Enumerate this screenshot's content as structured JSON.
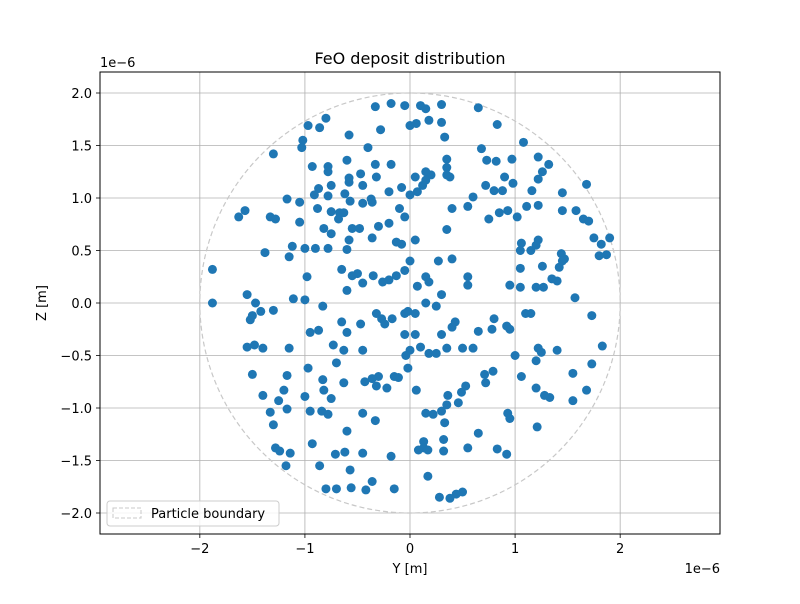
{
  "chart_data": {
    "type": "scatter",
    "title": "FeO deposit distribution",
    "xlabel": "Y [m]",
    "ylabel": "Z [m]",
    "x_offset_label": "1e−6",
    "y_offset_label": "1e−6",
    "xlim": [
      -2.95,
      2.95
    ],
    "ylim": [
      -2.2,
      2.2
    ],
    "xticks": [
      -2,
      -1,
      0,
      1,
      2
    ],
    "xtick_labels": [
      "−2",
      "−1",
      "0",
      "1",
      "2"
    ],
    "yticks": [
      -2.0,
      -1.5,
      -1.0,
      -0.5,
      0.0,
      0.5,
      1.0,
      1.5,
      2.0
    ],
    "ytick_labels": [
      "−2.0",
      "−1.5",
      "−1.0",
      "−0.5",
      "0.0",
      "0.5",
      "1.0",
      "1.5",
      "2.0"
    ],
    "grid": true,
    "legend_position": "lower-left",
    "legend": [
      {
        "label": "Particle boundary",
        "style": "dashed"
      }
    ],
    "boundary": {
      "name": "Particle boundary",
      "center": [
        0,
        0
      ],
      "radius": 2.0,
      "color": "#c8c8c8"
    },
    "point_color": "#1f77b4",
    "units_scale": "1e-6",
    "series": [
      {
        "values": [
          [
            0.3,
            1.89
          ],
          [
            -0.05,
            1.88
          ],
          [
            0.1,
            1.88
          ],
          [
            0.65,
            1.86
          ],
          [
            0.15,
            1.85
          ],
          [
            -0.18,
            1.9
          ],
          [
            -0.33,
            1.87
          ],
          [
            -1.02,
            1.55
          ],
          [
            -1.03,
            1.48
          ],
          [
            -0.97,
            1.69
          ],
          [
            -0.8,
            1.76
          ],
          [
            -0.86,
            1.67
          ],
          [
            -0.58,
            1.6
          ],
          [
            -0.4,
            1.48
          ],
          [
            -0.28,
            1.65
          ],
          [
            0.0,
            1.69
          ],
          [
            0.06,
            1.71
          ],
          [
            0.18,
            1.74
          ],
          [
            0.3,
            1.72
          ],
          [
            0.33,
            1.58
          ],
          [
            0.83,
            1.7
          ],
          [
            1.08,
            1.53
          ],
          [
            1.32,
            1.32
          ],
          [
            1.22,
            1.39
          ],
          [
            1.26,
            1.25
          ],
          [
            1.22,
            1.18
          ],
          [
            1.45,
            1.05
          ],
          [
            1.68,
            1.13
          ],
          [
            1.9,
            0.62
          ],
          [
            1.75,
            0.62
          ],
          [
            1.82,
            0.56
          ],
          [
            1.87,
            0.46
          ],
          [
            1.8,
            0.45
          ],
          [
            1.44,
            0.47
          ],
          [
            1.47,
            0.42
          ],
          [
            1.42,
            0.34
          ],
          [
            1.57,
            0.05
          ],
          [
            1.73,
            -0.12
          ],
          [
            1.83,
            -0.41
          ],
          [
            1.73,
            -0.58
          ],
          [
            1.55,
            -0.67
          ],
          [
            1.68,
            -0.83
          ],
          [
            1.55,
            -0.93
          ],
          [
            1.4,
            -0.45
          ],
          [
            1.33,
            -0.9
          ],
          [
            1.28,
            -0.88
          ],
          [
            1.21,
            -1.18
          ],
          [
            1.2,
            -0.81
          ],
          [
            1.2,
            -0.55
          ],
          [
            1.25,
            -0.47
          ],
          [
            1.22,
            -0.43
          ],
          [
            1.06,
            -0.7
          ],
          [
            0.93,
            -1.05
          ],
          [
            0.95,
            -1.1
          ],
          [
            1.0,
            -0.5
          ],
          [
            0.95,
            -0.25
          ],
          [
            0.92,
            -0.22
          ],
          [
            0.92,
            -1.44
          ],
          [
            0.83,
            -1.39
          ],
          [
            0.65,
            -1.24
          ],
          [
            0.71,
            -0.68
          ],
          [
            0.79,
            -0.65
          ],
          [
            0.72,
            -0.76
          ],
          [
            0.53,
            -0.79
          ],
          [
            0.49,
            -0.85
          ],
          [
            0.46,
            -0.95
          ],
          [
            0.36,
            -0.88
          ],
          [
            0.35,
            -0.97
          ],
          [
            0.33,
            -1.14
          ],
          [
            0.32,
            -1.3
          ],
          [
            0.32,
            -1.41
          ],
          [
            0.55,
            -1.38
          ],
          [
            0.5,
            -1.8
          ],
          [
            0.44,
            -1.82
          ],
          [
            0.38,
            -1.86
          ],
          [
            0.28,
            -1.85
          ],
          [
            0.17,
            -1.65
          ],
          [
            0.13,
            -1.32
          ],
          [
            0.13,
            -1.38
          ],
          [
            0.17,
            -1.4
          ],
          [
            0.22,
            -1.06
          ],
          [
            0.3,
            -1.03
          ],
          [
            0.15,
            -1.05
          ],
          [
            0.08,
            -1.4
          ],
          [
            0.06,
            -0.83
          ],
          [
            -0.02,
            -0.62
          ],
          [
            -0.04,
            -0.5
          ],
          [
            -0.11,
            -0.71
          ],
          [
            -0.15,
            -0.7
          ],
          [
            -0.3,
            -0.7
          ],
          [
            -0.36,
            -0.72
          ],
          [
            -0.32,
            -0.79
          ],
          [
            -0.22,
            -0.81
          ],
          [
            -0.43,
            -0.75
          ],
          [
            -0.45,
            -1.05
          ],
          [
            -0.33,
            -1.12
          ],
          [
            -0.45,
            -1.43
          ],
          [
            -0.18,
            -1.46
          ],
          [
            -0.36,
            -1.7
          ],
          [
            -0.42,
            -1.78
          ],
          [
            -0.15,
            -1.77
          ],
          [
            -0.56,
            -1.76
          ],
          [
            -0.7,
            -1.77
          ],
          [
            -0.8,
            -1.77
          ],
          [
            -0.57,
            -1.59
          ],
          [
            -0.62,
            -1.42
          ],
          [
            -0.71,
            -1.44
          ],
          [
            -0.86,
            -1.55
          ],
          [
            -0.93,
            -1.34
          ],
          [
            -0.6,
            -1.22
          ],
          [
            -0.78,
            -1.06
          ],
          [
            -0.84,
            -1.03
          ],
          [
            -0.95,
            -1.03
          ],
          [
            -0.75,
            -0.91
          ],
          [
            -0.63,
            -0.76
          ],
          [
            -0.83,
            -0.73
          ],
          [
            -0.82,
            -0.83
          ],
          [
            -1.0,
            -0.89
          ],
          [
            -1.2,
            -0.83
          ],
          [
            -1.25,
            -0.93
          ],
          [
            -1.17,
            -1.01
          ],
          [
            -1.33,
            -1.04
          ],
          [
            -1.3,
            -1.16
          ],
          [
            -1.28,
            -1.38
          ],
          [
            -1.24,
            -1.41
          ],
          [
            -1.14,
            -1.43
          ],
          [
            -1.18,
            -1.55
          ],
          [
            -1.4,
            -0.88
          ],
          [
            -1.5,
            -0.68
          ],
          [
            -1.17,
            -0.69
          ],
          [
            -1.15,
            -0.43
          ],
          [
            -1.4,
            -0.43
          ],
          [
            -1.55,
            -0.42
          ],
          [
            -1.48,
            -0.4
          ],
          [
            -1.52,
            -0.16
          ],
          [
            -1.42,
            -0.08
          ],
          [
            -1.3,
            -0.07
          ],
          [
            -1.5,
            -0.12
          ],
          [
            -1.47,
            0.0
          ],
          [
            -1.55,
            0.08
          ],
          [
            -1.88,
            0.0
          ],
          [
            -1.88,
            0.32
          ],
          [
            -1.57,
            0.88
          ],
          [
            -1.63,
            0.82
          ],
          [
            -1.33,
            0.82
          ],
          [
            -1.38,
            0.48
          ],
          [
            -1.12,
            0.54
          ],
          [
            -1.15,
            0.44
          ],
          [
            -1.11,
            0.04
          ],
          [
            -1.0,
            0.03
          ],
          [
            -0.98,
            0.25
          ],
          [
            -1.0,
            0.52
          ],
          [
            -0.9,
            0.52
          ],
          [
            -0.78,
            0.52
          ],
          [
            -0.6,
            0.51
          ],
          [
            -0.58,
            0.6
          ],
          [
            -0.55,
            0.71
          ],
          [
            -0.48,
            0.71
          ],
          [
            -0.36,
            0.62
          ],
          [
            -0.3,
            0.73
          ],
          [
            -0.2,
            0.76
          ],
          [
            -0.1,
            0.9
          ],
          [
            -0.05,
            0.82
          ],
          [
            -0.13,
            0.58
          ],
          [
            -0.08,
            0.56
          ],
          [
            0.05,
            0.6
          ],
          [
            0.0,
            0.4
          ],
          [
            -0.05,
            0.31
          ],
          [
            -0.13,
            0.26
          ],
          [
            -0.2,
            0.22
          ],
          [
            -0.26,
            0.2
          ],
          [
            -0.35,
            0.26
          ],
          [
            -0.45,
            0.19
          ],
          [
            -0.5,
            0.28
          ],
          [
            -0.55,
            0.26
          ],
          [
            -0.6,
            0.12
          ],
          [
            -0.65,
            0.32
          ],
          [
            -0.83,
            -0.03
          ],
          [
            -0.87,
            -0.26
          ],
          [
            -0.95,
            -0.28
          ],
          [
            -0.97,
            -0.62
          ],
          [
            -0.65,
            -0.18
          ],
          [
            -0.6,
            -0.28
          ],
          [
            -0.73,
            -0.4
          ],
          [
            -0.63,
            -0.45
          ],
          [
            -0.7,
            -0.57
          ],
          [
            -0.45,
            -0.45
          ],
          [
            -0.47,
            -0.2
          ],
          [
            -0.32,
            -0.1
          ],
          [
            -0.27,
            -0.15
          ],
          [
            -0.24,
            -0.2
          ],
          [
            -0.17,
            -0.15
          ],
          [
            -0.05,
            -0.1
          ],
          [
            0.05,
            -0.1
          ],
          [
            0.05,
            -0.3
          ],
          [
            0.0,
            -0.45
          ],
          [
            0.1,
            -0.42
          ],
          [
            0.18,
            -0.48
          ],
          [
            0.25,
            -0.48
          ],
          [
            0.3,
            -0.3
          ],
          [
            0.35,
            -0.43
          ],
          [
            0.4,
            -0.23
          ],
          [
            0.43,
            -0.18
          ],
          [
            0.5,
            -0.43
          ],
          [
            0.6,
            -0.43
          ],
          [
            0.65,
            -0.27
          ],
          [
            0.78,
            -0.25
          ],
          [
            0.8,
            -0.15
          ],
          [
            0.55,
            0.17
          ],
          [
            0.55,
            0.25
          ],
          [
            0.4,
            0.42
          ],
          [
            0.27,
            0.4
          ],
          [
            0.3,
            0.08
          ],
          [
            0.25,
            -0.03
          ],
          [
            0.15,
            0.0
          ],
          [
            0.18,
            0.2
          ],
          [
            0.15,
            0.25
          ],
          [
            0.07,
            0.16
          ],
          [
            -0.02,
            -0.08
          ],
          [
            -0.05,
            -0.3
          ],
          [
            0.0,
            1.03
          ],
          [
            0.07,
            1.06
          ],
          [
            0.12,
            1.12
          ],
          [
            0.2,
            1.22
          ],
          [
            0.15,
            1.25
          ],
          [
            0.05,
            1.2
          ],
          [
            0.15,
            1.17
          ],
          [
            0.38,
            1.2
          ],
          [
            0.4,
            0.9
          ],
          [
            0.35,
            0.7
          ],
          [
            0.55,
            0.92
          ],
          [
            0.6,
            1.01
          ],
          [
            0.72,
            1.12
          ],
          [
            0.8,
            1.07
          ],
          [
            0.75,
            0.8
          ],
          [
            0.85,
            0.86
          ],
          [
            0.93,
            0.88
          ],
          [
            1.02,
            0.82
          ],
          [
            1.06,
            0.57
          ],
          [
            1.05,
            0.5
          ],
          [
            1.2,
            0.55
          ],
          [
            1.22,
            0.6
          ],
          [
            1.26,
            0.35
          ],
          [
            1.27,
            0.15
          ],
          [
            1.4,
            0.21
          ],
          [
            1.45,
            0.4
          ],
          [
            1.35,
            0.23
          ],
          [
            1.2,
            0.15
          ],
          [
            1.15,
            -0.1
          ],
          [
            1.1,
            -0.1
          ],
          [
            1.05,
            0.15
          ],
          [
            0.95,
            0.17
          ],
          [
            1.05,
            0.33
          ],
          [
            1.15,
            0.5
          ],
          [
            0.9,
            1.2
          ],
          [
            0.88,
            1.07
          ],
          [
            0.98,
            1.14
          ],
          [
            1.16,
            1.07
          ],
          [
            1.58,
            0.88
          ],
          [
            1.65,
            0.8
          ],
          [
            1.7,
            0.78
          ],
          [
            1.45,
            0.88
          ],
          [
            1.22,
            0.93
          ],
          [
            1.11,
            0.92
          ],
          [
            0.97,
            1.37
          ],
          [
            0.73,
            1.36
          ],
          [
            0.82,
            1.35
          ],
          [
            0.68,
            1.47
          ],
          [
            0.35,
            1.37
          ],
          [
            0.35,
            1.29
          ],
          [
            0.35,
            1.22
          ],
          [
            -0.08,
            1.1
          ],
          [
            -0.2,
            1.06
          ],
          [
            -0.36,
            0.96
          ],
          [
            -0.37,
            0.99
          ],
          [
            -0.45,
            0.95
          ],
          [
            -0.57,
            0.97
          ],
          [
            -0.62,
            1.04
          ],
          [
            -0.58,
            1.15
          ],
          [
            -0.75,
            1.12
          ],
          [
            -0.87,
            1.09
          ],
          [
            -0.91,
            1.03
          ],
          [
            -0.78,
            1.02
          ],
          [
            -0.88,
            0.9
          ],
          [
            -0.75,
            0.87
          ],
          [
            -0.67,
            0.86
          ],
          [
            -0.63,
            0.86
          ],
          [
            -0.82,
            0.71
          ],
          [
            -0.75,
            0.66
          ],
          [
            -0.68,
            0.8
          ],
          [
            -1.05,
            0.77
          ],
          [
            -1.17,
            0.99
          ],
          [
            -1.05,
            0.96
          ],
          [
            -1.28,
            0.8
          ],
          [
            -0.93,
            1.3
          ],
          [
            -0.78,
            1.25
          ],
          [
            -0.78,
            1.3
          ],
          [
            -0.6,
            1.36
          ],
          [
            -0.58,
            1.19
          ],
          [
            -0.47,
            1.23
          ],
          [
            -0.32,
            1.2
          ],
          [
            -0.45,
            1.12
          ],
          [
            -0.33,
            1.32
          ],
          [
            -0.18,
            1.32
          ],
          [
            -1.3,
            1.42
          ]
        ]
      }
    ]
  }
}
